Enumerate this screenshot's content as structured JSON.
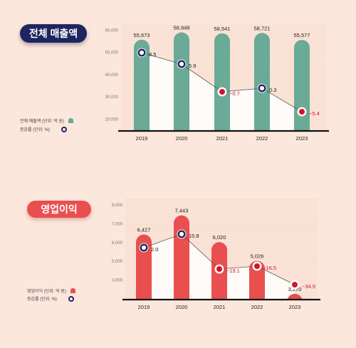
{
  "colors": {
    "background": "#fce7dc",
    "revenue_bar": "#6aaa96",
    "profit_bar": "#e94f4f",
    "navy": "#1f2560",
    "red_marker": "#d1152a",
    "negative_text": "#d1152a"
  },
  "chart_data": [
    {
      "type": "bar",
      "title": "전체 매출액",
      "categories": [
        "2019",
        "2020",
        "2021",
        "2022",
        "2023"
      ],
      "values": [
        55673,
        58948,
        58541,
        58721,
        55577
      ],
      "value_labels": [
        "55,673",
        "58,948",
        "58,541",
        "58,721",
        "55,577"
      ],
      "ylim": [
        15000,
        62000
      ],
      "yticks": [
        "20,000",
        "30,000",
        "40,000",
        "50,000",
        "60,000"
      ],
      "ytick_values": [
        20000,
        30000,
        40000,
        50000,
        60000
      ],
      "grid": true,
      "growth": {
        "values": [
          8.5,
          5.9,
          -0.7,
          0.3,
          -5.4
        ],
        "labels": [
          "8.5",
          "5.9",
          "−0.7",
          "0.3",
          "−5.4"
        ]
      },
      "legend": {
        "bar": "전체 매출액 (단위: 억 원)",
        "line": "증감률 (단위: %)"
      }
    },
    {
      "type": "bar",
      "title": "영업이익",
      "categories": [
        "2019",
        "2020",
        "2021",
        "2022",
        "2023"
      ],
      "values": [
        6427,
        7443,
        6020,
        5026,
        3270
      ],
      "value_labels": [
        "6,427",
        "7,443",
        "6,020",
        "5,026",
        "3,270"
      ],
      "ylim": [
        3000,
        8300
      ],
      "yticks": [
        "4,000",
        "5,000",
        "6,000",
        "7,000",
        "8,000"
      ],
      "ytick_values": [
        4000,
        5000,
        6000,
        7000,
        8000
      ],
      "grid": true,
      "growth": {
        "values": [
          2.0,
          15.8,
          -19.1,
          -16.5,
          -34.9
        ],
        "labels": [
          "2.0",
          "15.8",
          "−19.1",
          "-16.5",
          "−34.9"
        ]
      },
      "legend": {
        "bar": "영업이익 (단위: 억 원)",
        "line": "증감률 (단위: %)"
      }
    }
  ]
}
